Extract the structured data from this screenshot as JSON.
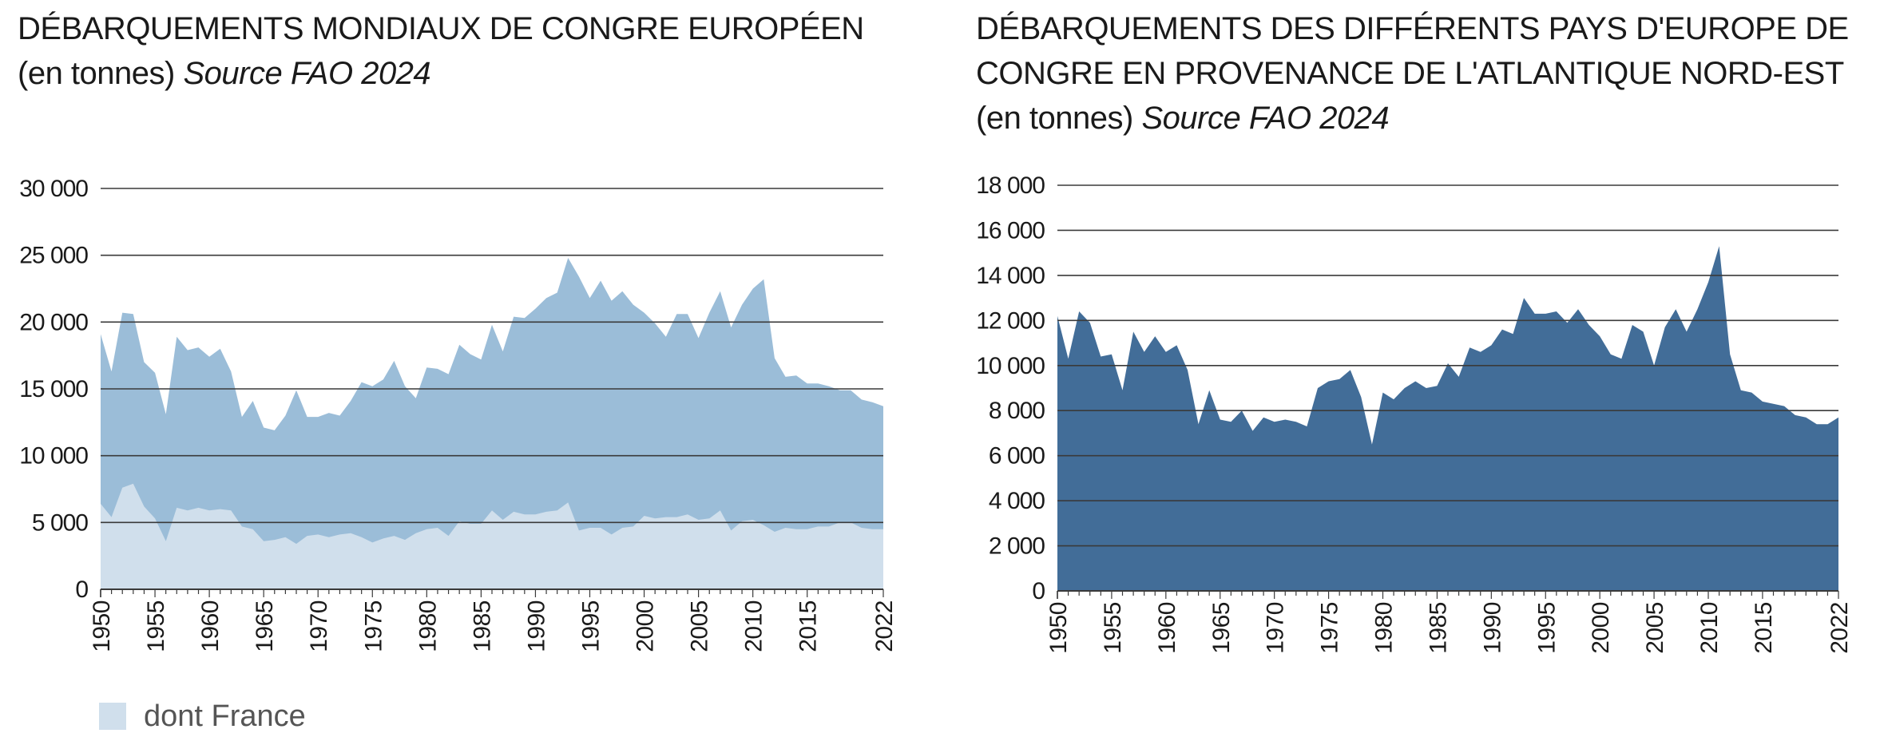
{
  "colors": {
    "world": "#9bbdd8",
    "france": "#d0dfec",
    "europe": "#426d98",
    "grid": "#3a3a3a",
    "text": "#1a1a1a"
  },
  "legend": {
    "label": "dont France"
  },
  "chart_data": [
    {
      "type": "area",
      "title": "DÉBARQUEMENTS MONDIAUX DE CONGRE EUROPÉEN",
      "subtitle_plain": "(en tonnes) ",
      "subtitle_source": "Source FAO 2024",
      "ylim": [
        0,
        30000
      ],
      "yticks": [
        "0",
        "5 000",
        "10 000",
        "15 000",
        "20 000",
        "25 000",
        "30 000"
      ],
      "yticks_values": [
        0,
        5000,
        10000,
        15000,
        20000,
        25000,
        30000
      ],
      "xticks": [
        "1950",
        "1955",
        "1960",
        "1965",
        "1970",
        "1975",
        "1980",
        "1985",
        "1990",
        "1995",
        "2000",
        "2005",
        "2010",
        "2015",
        "2022"
      ],
      "xticks_values": [
        1950,
        1955,
        1960,
        1965,
        1970,
        1975,
        1980,
        1985,
        1990,
        1995,
        2000,
        2005,
        2010,
        2015,
        2022
      ],
      "grid": true,
      "legend_position": "bottom-left",
      "x": [
        1950,
        1951,
        1952,
        1953,
        1954,
        1955,
        1956,
        1957,
        1958,
        1959,
        1960,
        1961,
        1962,
        1963,
        1964,
        1965,
        1966,
        1967,
        1968,
        1969,
        1970,
        1971,
        1972,
        1973,
        1974,
        1975,
        1976,
        1977,
        1978,
        1979,
        1980,
        1981,
        1982,
        1983,
        1984,
        1985,
        1986,
        1987,
        1988,
        1989,
        1990,
        1991,
        1992,
        1993,
        1994,
        1995,
        1996,
        1997,
        1998,
        1999,
        2000,
        2001,
        2002,
        2003,
        2004,
        2005,
        2006,
        2007,
        2008,
        2009,
        2010,
        2011,
        2012,
        2013,
        2014,
        2015,
        2016,
        2017,
        2018,
        2019,
        2020,
        2021,
        2022
      ],
      "series": [
        {
          "name": "",
          "values": [
            19100,
            16300,
            20700,
            20600,
            17000,
            16200,
            13100,
            18900,
            17900,
            18100,
            17400,
            18000,
            16300,
            12900,
            14100,
            12100,
            11900,
            13000,
            14900,
            12900,
            12900,
            13200,
            13000,
            14100,
            15500,
            15200,
            15700,
            17100,
            15200,
            14300,
            16600,
            16500,
            16100,
            18300,
            17600,
            17200,
            19800,
            17800,
            20400,
            20300,
            21000,
            21800,
            22200,
            24800,
            23400,
            21800,
            23100,
            21600,
            22300,
            21300,
            20700,
            19900,
            18900,
            20600,
            20600,
            18800,
            20700,
            22300,
            19600,
            21300,
            22500,
            23200,
            17300,
            15900,
            16000,
            15400,
            15400,
            15200,
            14900,
            14900,
            14200,
            14000,
            13700
          ]
        },
        {
          "name": "dont France",
          "values": [
            6400,
            5400,
            7600,
            7900,
            6200,
            5300,
            3600,
            6100,
            5900,
            6100,
            5900,
            6000,
            5900,
            4700,
            4500,
            3600,
            3700,
            3900,
            3400,
            4000,
            4100,
            3900,
            4100,
            4200,
            3900,
            3500,
            3800,
            4000,
            3700,
            4200,
            4500,
            4600,
            4000,
            5100,
            4900,
            4900,
            5900,
            5200,
            5800,
            5600,
            5600,
            5800,
            5900,
            6500,
            4400,
            4600,
            4600,
            4100,
            4600,
            4700,
            5500,
            5300,
            5400,
            5400,
            5600,
            5200,
            5300,
            5900,
            4400,
            5100,
            5200,
            4800,
            4300,
            4600,
            4500,
            4500,
            4700,
            4700,
            5000,
            5000,
            4600,
            4500,
            4500
          ]
        }
      ]
    },
    {
      "type": "area",
      "title": "DÉBARQUEMENTS DES DIFFÉRENTS PAYS D'EUROPE DE CONGRE EN PROVENANCE DE L'ATLANTIQUE NORD-EST",
      "subtitle_plain": "(en tonnes) ",
      "subtitle_source": "Source FAO 2024",
      "ylim": [
        0,
        18000
      ],
      "yticks": [
        "0",
        "2 000",
        "4 000",
        "6 000",
        "8 000",
        "10 000",
        "12 000",
        "14 000",
        "16 000",
        "18 000"
      ],
      "yticks_values": [
        0,
        2000,
        4000,
        6000,
        8000,
        10000,
        12000,
        14000,
        16000,
        18000
      ],
      "xticks": [
        "1950",
        "1955",
        "1960",
        "1965",
        "1970",
        "1975",
        "1980",
        "1985",
        "1990",
        "1995",
        "2000",
        "2005",
        "2010",
        "2015",
        "2022"
      ],
      "xticks_values": [
        1950,
        1955,
        1960,
        1965,
        1970,
        1975,
        1980,
        1985,
        1990,
        1995,
        2000,
        2005,
        2010,
        2015,
        2022
      ],
      "grid": true,
      "x": [
        1950,
        1951,
        1952,
        1953,
        1954,
        1955,
        1956,
        1957,
        1958,
        1959,
        1960,
        1961,
        1962,
        1963,
        1964,
        1965,
        1966,
        1967,
        1968,
        1969,
        1970,
        1971,
        1972,
        1973,
        1974,
        1975,
        1976,
        1977,
        1978,
        1979,
        1980,
        1981,
        1982,
        1983,
        1984,
        1985,
        1986,
        1987,
        1988,
        1989,
        1990,
        1991,
        1992,
        1993,
        1994,
        1995,
        1996,
        1997,
        1998,
        1999,
        2000,
        2001,
        2002,
        2003,
        2004,
        2005,
        2006,
        2007,
        2008,
        2009,
        2010,
        2011,
        2012,
        2013,
        2014,
        2015,
        2016,
        2017,
        2018,
        2019,
        2020,
        2021,
        2022
      ],
      "series": [
        {
          "name": "",
          "values": [
            12200,
            10300,
            12400,
            11900,
            10400,
            10500,
            8900,
            11500,
            10600,
            11300,
            10600,
            10900,
            9800,
            7400,
            8900,
            7600,
            7500,
            8000,
            7100,
            7700,
            7500,
            7600,
            7500,
            7300,
            9000,
            9300,
            9400,
            9800,
            8600,
            6500,
            8800,
            8500,
            9000,
            9300,
            9000,
            9100,
            10100,
            9500,
            10800,
            10600,
            10900,
            11600,
            11400,
            13000,
            12300,
            12300,
            12400,
            11900,
            12500,
            11800,
            11300,
            10500,
            10300,
            11800,
            11500,
            10000,
            11700,
            12500,
            11500,
            12500,
            13700,
            15300,
            10500,
            8900,
            8800,
            8400,
            8300,
            8200,
            7800,
            7700,
            7400,
            7400,
            7700
          ]
        }
      ]
    }
  ]
}
